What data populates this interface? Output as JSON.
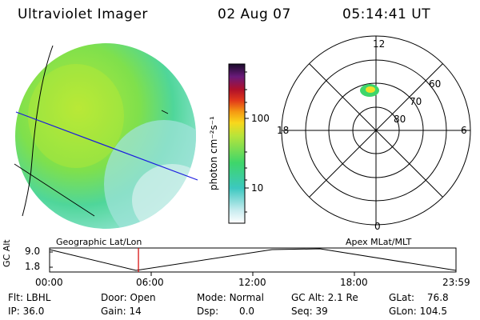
{
  "header": {
    "title": "Ultraviolet Imager",
    "date": "02 Aug 07",
    "time": "05:14:41 UT"
  },
  "colorbar": {
    "unit_label": "photon cm⁻²s⁻¹",
    "ticks": [
      "100",
      "10"
    ]
  },
  "polar": {
    "mlt_labels": [
      "12",
      "18",
      "6",
      "0"
    ],
    "lat_labels": [
      "60",
      "70",
      "80"
    ]
  },
  "timeline": {
    "left_title": "Geographic Lat/Lon",
    "right_title": "Apex MLat/MLT",
    "yaxis_label": "GC Alt",
    "ytick_top": "9.0",
    "ytick_bottom": "1.8",
    "time_ticks": [
      "00:00",
      "06:00",
      "12:00",
      "18:00",
      "23:59"
    ],
    "current_time_fraction": 0.2186
  },
  "status": {
    "col1": [
      {
        "label": "Flt:",
        "value": "LBHL"
      },
      {
        "label": "IP:",
        "value": "36.0"
      }
    ],
    "col2": [
      {
        "label": "Door:",
        "value": "Open"
      },
      {
        "label": "Gain:",
        "value": "14"
      }
    ],
    "col3": [
      {
        "label": "Mode:",
        "value": "Normal"
      },
      {
        "label": "Dsp:",
        "value": "0.0"
      }
    ],
    "col4": [
      {
        "label": "GC Alt:",
        "value": "2.1 Re"
      },
      {
        "label": "Seq:",
        "value": "39"
      }
    ],
    "col5": [
      {
        "label": "GLat:",
        "value": "76.8"
      },
      {
        "label": "GLon:",
        "value": "104.5"
      }
    ]
  }
}
